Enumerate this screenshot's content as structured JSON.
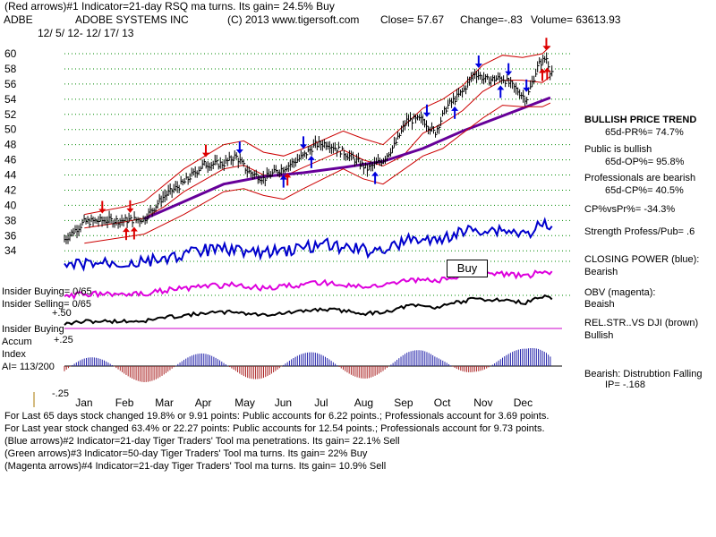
{
  "header": {
    "line1": "(Red arrows)#1 Indicator=21-day RSQ ma turns.  Its gain= 24.5% Buy",
    "ticker": "ADBE",
    "company": "ADOBE SYSTEMS INC",
    "copyright": "(C) 2013 www.tigersoft.com",
    "close": "Close=  57.67",
    "change": "Change=-.83",
    "volume": "Volume=  63613.93",
    "date_range": "12/ 5/ 12-  12/ 17/ 13"
  },
  "right_panel": {
    "trend_title": "BULLISH PRICE TREND",
    "pr_pct": "65d-PR%= 74.7%",
    "public_status": "Public is bullish",
    "op_pct": "65d-OP%= 95.8%",
    "prof_status": "Professionals are bearish",
    "cp_pct": "65d-CP%= 40.5%",
    "cp_vs_pr": "CP%vsPr%= -34.3%",
    "strength": "Strength Profess/Pub= .6",
    "closing_power_label": "CLOSING POWER (blue):",
    "closing_power_value": "Bearish",
    "obv_label": "OBV (magenta):",
    "obv_value": "Beaish",
    "relstr_label": "REL.STR..VS DJI (brown)",
    "relstr_value": "Bullish",
    "ip_label": "Bearish: Distrubtion Falling",
    "ip_value": "IP= -.168"
  },
  "left_labels": {
    "insider_buying": "Insider Buying= 0/65",
    "insider_selling": "Insider Selling= 0/65",
    "plus50": "+.50",
    "insider_buying2": "Insider Buying",
    "accum": "Accum",
    "plus25": "+.25",
    "index": "Index",
    "ai": "AI= 113/200",
    "minus25": "-.25"
  },
  "buy_label": "Buy",
  "footer": {
    "line1": "For Last 65 days stock changed  19.8% or  9.91 points:  Public accounts for  6.22 points.;  Professionals account for  3.69 points.",
    "line2": "For Last year stock changed  63.4% or  22.27 points:  Public accounts for  12.54 points.;  Professionals account for  9.73 points.",
    "line3": "(Blue arrows)#2 Indicator=21-day Tiger Traders' Tool ma penetrations. Its gain= 22.1% Sell",
    "line4": "(Green arrows)#3 Indicator=50-day Tiger Traders' Tool ma turns.  Its gain= 22% Buy",
    "line5": "(Magenta arrows)#4 Indicator=21-day Tiger Traders' Tool ma turns.  Its gain= 10.9% Sell"
  },
  "chart_data": {
    "type": "line",
    "title": "ADOBE SYSTEMS INC (ADBE) daily price with indicators",
    "x_tick_labels": [
      "Jan",
      "Feb",
      "Mar",
      "Apr",
      "May",
      "Jun",
      "Jul",
      "Aug",
      "Sep",
      "Oct",
      "Nov",
      "Dec"
    ],
    "y_tick_labels": [
      "60",
      "58",
      "56",
      "54",
      "52",
      "50",
      "48",
      "46",
      "44",
      "42",
      "40",
      "38",
      "36",
      "34"
    ],
    "ylim": [
      33,
      61
    ],
    "xlim_months": [
      0,
      12.6
    ],
    "price_series": {
      "name": "Close",
      "month_pos": [
        0,
        0.5,
        1,
        1.5,
        2,
        2.5,
        3,
        3.5,
        4,
        4.3,
        4.6,
        5,
        5.3,
        5.6,
        6,
        6.3,
        6.6,
        7,
        7.3,
        7.6,
        8,
        8.3,
        8.6,
        9,
        9.3,
        9.6,
        10,
        10.3,
        10.6,
        11,
        11.3,
        11.6,
        11.9,
        12.1,
        12.2
      ],
      "values": [
        35.5,
        37.8,
        38.0,
        38.0,
        38.2,
        41.2,
        43.0,
        45.4,
        45.5,
        46.5,
        44.5,
        43.5,
        44.4,
        45.2,
        46.5,
        48.0,
        48.2,
        47.0,
        46.0,
        44.8,
        46.0,
        48.0,
        51.2,
        51.3,
        49.5,
        53.0,
        55.0,
        57.5,
        56.5,
        56.8,
        55.5,
        54.0,
        58.5,
        59.5,
        57.67
      ]
    },
    "series": [
      {
        "name": "21-day moving average",
        "color": "#cc0000",
        "month_pos": [
          0.5,
          1.5,
          2,
          2.5,
          3,
          4,
          4.5,
          5,
          5.5,
          6,
          7,
          7.5,
          8,
          8.5,
          9,
          9.5,
          10,
          10.5,
          11,
          11.5,
          12,
          12.2
        ],
        "values": [
          37.0,
          37.8,
          38.3,
          39.8,
          41.8,
          44.8,
          45.3,
          44.0,
          43.8,
          45.0,
          47.3,
          46.0,
          45.2,
          46.5,
          49.5,
          50.8,
          52.5,
          55.0,
          56.5,
          56.5,
          56.2,
          57.0
        ]
      },
      {
        "name": "65-day moving average",
        "color": "#660099",
        "month_pos": [
          2,
          3,
          4,
          5,
          6,
          7,
          8,
          9,
          10,
          11,
          12,
          12.2
        ],
        "values": [
          38.2,
          40.5,
          42.8,
          43.8,
          44.3,
          45.0,
          45.8,
          47.5,
          49.8,
          51.8,
          53.8,
          54.2
        ]
      },
      {
        "name": "Upper band",
        "color": "#cc0000",
        "month_pos": [
          0.5,
          1.5,
          2,
          3,
          4,
          4.5,
          5,
          5.5,
          6,
          7,
          7.5,
          8,
          9,
          9.5,
          10,
          10.5,
          11,
          11.5,
          12,
          12.2
        ],
        "values": [
          38.8,
          39.8,
          40.5,
          44.8,
          48.0,
          48.5,
          47.0,
          46.5,
          47.5,
          49.8,
          48.8,
          48.0,
          52.8,
          54.0,
          55.8,
          58.5,
          59.8,
          59.5,
          60.0,
          61.0
        ]
      },
      {
        "name": "Lower band",
        "color": "#cc0000",
        "month_pos": [
          0.5,
          1.5,
          2,
          3,
          4,
          4.5,
          5,
          5.5,
          6,
          7,
          7.5,
          8,
          9,
          9.5,
          10,
          10.5,
          11,
          11.5,
          12,
          12.2
        ],
        "values": [
          35.0,
          35.8,
          36.2,
          38.8,
          41.8,
          42.2,
          41.3,
          40.8,
          42.2,
          44.8,
          43.5,
          42.8,
          46.5,
          47.5,
          49.5,
          51.5,
          53.2,
          53.0,
          53.0,
          53.5
        ]
      }
    ],
    "signal_arrows": {
      "red_down_months": [
        0.95,
        1.65,
        3.55,
        12.1
      ],
      "red_up_months": [
        1.55,
        1.75,
        5.6,
        12.0,
        12.12
      ],
      "blue_down_months": [
        4.4,
        6.0,
        9.1,
        10.4,
        11.15,
        11.6
      ],
      "blue_up_months": [
        5.5,
        6.2,
        7.8,
        9.8,
        10.95
      ]
    },
    "indicator_panels": [
      {
        "name": "Closing Power",
        "color": "#0000cc"
      },
      {
        "name": "OBV",
        "color": "#dd00dd"
      },
      {
        "name": "Relative Strength vs DJI",
        "color": "#000000"
      },
      {
        "name": "Accumulation Index",
        "positive_color": "#2222aa",
        "negative_color": "#aa2222",
        "value": "AI= 113/200"
      }
    ]
  }
}
